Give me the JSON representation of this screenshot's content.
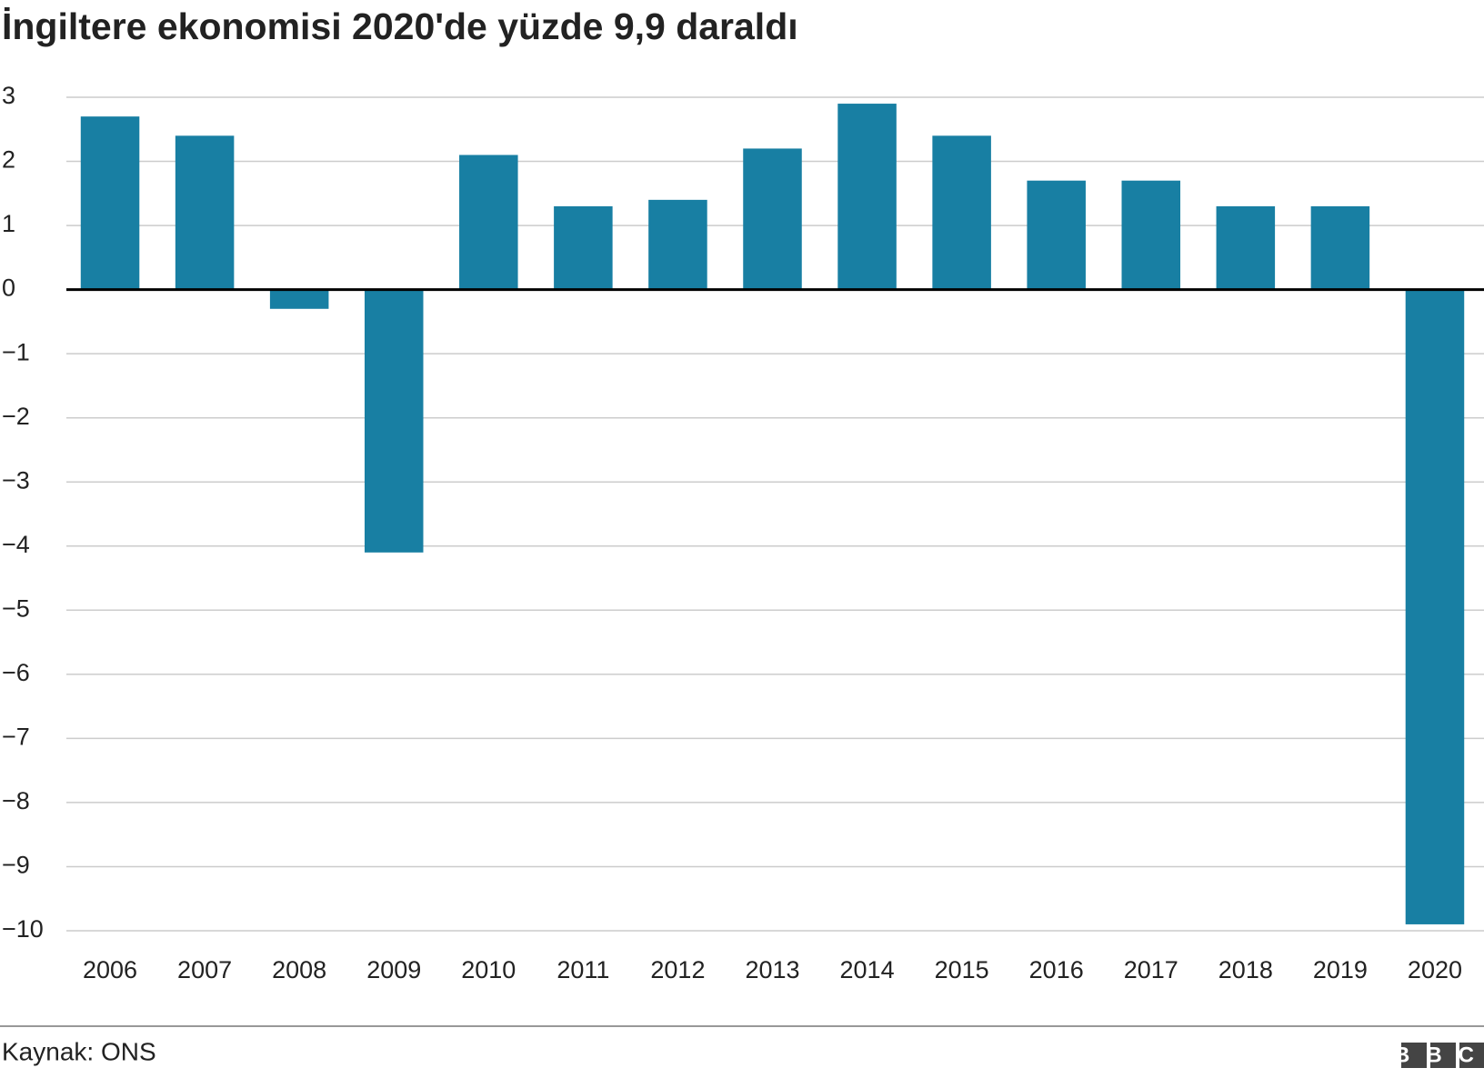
{
  "chart_data": {
    "type": "bar",
    "title": "İngiltere ekonomisi 2020'de yüzde 9,9 daraldı",
    "categories": [
      "2006",
      "2007",
      "2008",
      "2009",
      "2010",
      "2011",
      "2012",
      "2013",
      "2014",
      "2015",
      "2016",
      "2017",
      "2018",
      "2019",
      "2020"
    ],
    "values": [
      2.7,
      2.4,
      -0.3,
      -4.1,
      2.1,
      1.3,
      1.4,
      2.2,
      2.9,
      2.4,
      1.7,
      1.7,
      1.3,
      1.3,
      -9.9
    ],
    "color": "#187fa3",
    "ylim": [
      -10,
      3
    ],
    "yticks": [
      3,
      2,
      1,
      0,
      {
        "value": -1,
        "label": "−1"
      },
      {
        "value": -2,
        "label": "−2"
      },
      {
        "value": -3,
        "label": "−3"
      },
      {
        "value": -4,
        "label": "−4"
      },
      {
        "value": -5,
        "label": "−5"
      },
      {
        "value": -6,
        "label": "−6"
      },
      {
        "value": -7,
        "label": "−7"
      },
      {
        "value": -8,
        "label": "−8"
      },
      {
        "value": -9,
        "label": "−9"
      },
      {
        "value": -10,
        "label": "−10"
      }
    ],
    "grid": true,
    "source": "Kaynak: ONS",
    "logo": "BBC"
  }
}
